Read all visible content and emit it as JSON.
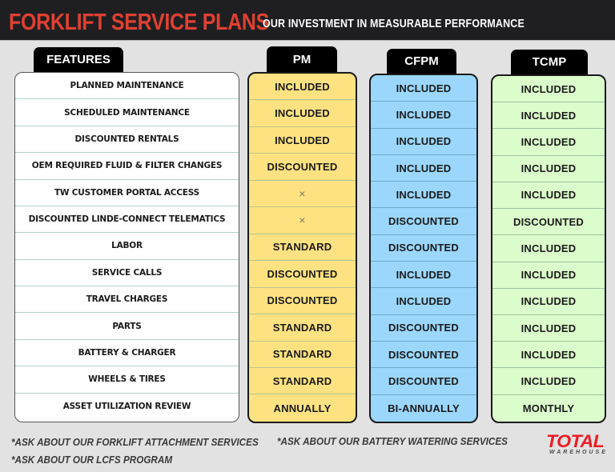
{
  "header": {
    "title": "FORKLIFT SERVICE PLANS",
    "subtitle": "OUR INVESTMENT IN MEASURABLE PERFORMANCE"
  },
  "colors": {
    "header_bg": "#1f1f21",
    "title": "#e04032",
    "pm": "#fee281",
    "cfpm": "#9bd7fc",
    "tcmp": "#dbfccb",
    "logo_red": "#ee1c24"
  },
  "table": {
    "features_label": "FEATURES",
    "features": [
      "PLANNED MAINTENANCE",
      "SCHEDULED MAINTENANCE",
      "DISCOUNTED RENTALS",
      "OEM REQUIRED FLUID & FILTER CHANGES",
      "TW CUSTOMER PORTAL ACCESS",
      "DISCOUNTED LINDE-CONNECT TELEMATICS",
      "LABOR",
      "SERVICE CALLS",
      "TRAVEL CHARGES",
      "PARTS",
      "BATTERY & CHARGER",
      "WHEELS & TIRES",
      "ASSET UTILIZATION REVIEW"
    ],
    "plans": [
      {
        "name": "PM",
        "values": [
          "INCLUDED",
          "INCLUDED",
          "INCLUDED",
          "DISCOUNTED",
          "×",
          "×",
          "STANDARD",
          "DISCOUNTED",
          "DISCOUNTED",
          "STANDARD",
          "STANDARD",
          "STANDARD",
          "ANNUALLY"
        ]
      },
      {
        "name": "CFPM",
        "values": [
          "INCLUDED",
          "INCLUDED",
          "INCLUDED",
          "INCLUDED",
          "INCLUDED",
          "DISCOUNTED",
          "DISCOUNTED",
          "INCLUDED",
          "INCLUDED",
          "DISCOUNTED",
          "DISCOUNTED",
          "DISCOUNTED",
          "BI-ANNUALLY"
        ]
      },
      {
        "name": "TCMP",
        "values": [
          "INCLUDED",
          "INCLUDED",
          "INCLUDED",
          "INCLUDED",
          "INCLUDED",
          "DISCOUNTED",
          "INCLUDED",
          "INCLUDED",
          "INCLUDED",
          "INCLUDED",
          "INCLUDED",
          "INCLUDED",
          "MONTHLY"
        ]
      }
    ]
  },
  "footer": {
    "notes": [
      "*ASK ABOUT OUR FORKLIFT ATTACHMENT SERVICES",
      "*ASK ABOUT OUR BATTERY WATERING SERVICES",
      "*ASK ABOUT OUR LCFS PROGRAM"
    ],
    "logo": {
      "main": "TOTAL",
      "sub": "WAREHOUSE"
    }
  }
}
